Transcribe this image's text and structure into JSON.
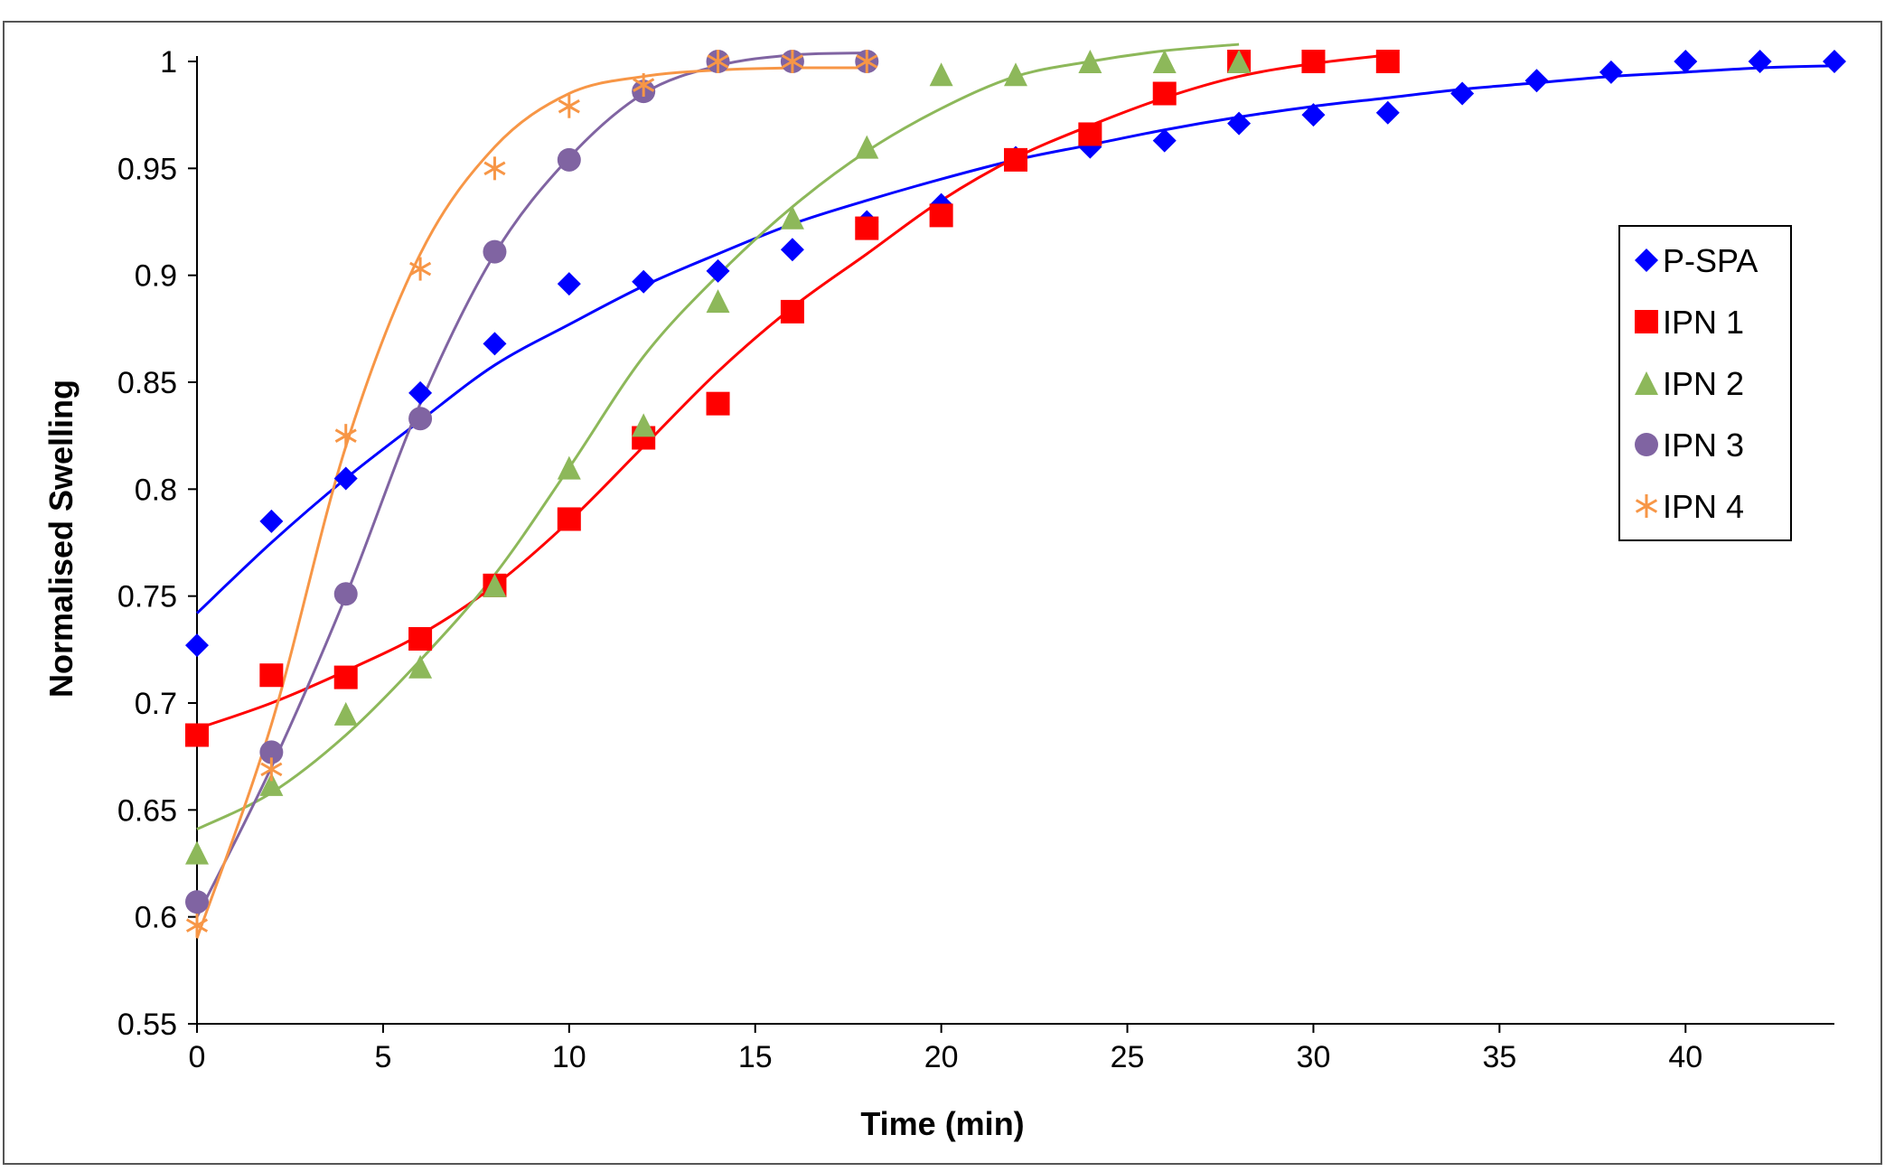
{
  "chart_data": {
    "type": "scatter",
    "title": "",
    "xlabel": "Time (min)",
    "ylabel": "Normalised Swelling",
    "xlim": [
      0,
      44
    ],
    "ylim": [
      0.55,
      1.0
    ],
    "x_ticks": [
      "0",
      "5",
      "10",
      "15",
      "20",
      "25",
      "30",
      "35",
      "40"
    ],
    "y_ticks": [
      "0.55",
      "0.6",
      "0.65",
      "0.7",
      "0.75",
      "0.8",
      "0.85",
      "0.9",
      "0.95",
      "1"
    ],
    "grid": false,
    "legend_position": "right",
    "trendlines": "smooth fitted curve per series",
    "series": [
      {
        "name": "P-SPA",
        "marker": "diamond",
        "color": "#0000ff",
        "x": [
          0,
          2,
          4,
          6,
          8,
          10,
          12,
          14,
          16,
          18,
          20,
          22,
          24,
          26,
          28,
          30,
          32,
          34,
          36,
          38,
          40,
          42,
          44
        ],
        "y": [
          0.727,
          0.785,
          0.805,
          0.845,
          0.868,
          0.896,
          0.897,
          0.902,
          0.912,
          0.925,
          0.933,
          0.955,
          0.96,
          0.963,
          0.971,
          0.975,
          0.976,
          0.985,
          0.991,
          0.995,
          1.0,
          1.0,
          1.0
        ],
        "fit_x": [
          0,
          2,
          4,
          6,
          8,
          10,
          12,
          14,
          16,
          18,
          20,
          22,
          24,
          26,
          28,
          30,
          32,
          34,
          36,
          38,
          40,
          42,
          44
        ],
        "fit_y": [
          0.742,
          0.775,
          0.805,
          0.832,
          0.858,
          0.877,
          0.895,
          0.91,
          0.924,
          0.935,
          0.945,
          0.954,
          0.961,
          0.968,
          0.974,
          0.979,
          0.983,
          0.987,
          0.99,
          0.993,
          0.995,
          0.997,
          0.998
        ]
      },
      {
        "name": "IPN 1",
        "marker": "square",
        "color": "#ff0000",
        "x": [
          0,
          2,
          4,
          6,
          8,
          10,
          12,
          14,
          16,
          18,
          20,
          22,
          24,
          26,
          28,
          30,
          32
        ],
        "y": [
          0.685,
          0.713,
          0.712,
          0.73,
          0.755,
          0.786,
          0.824,
          0.84,
          0.883,
          0.922,
          0.928,
          0.954,
          0.966,
          0.985,
          1.0,
          1.0,
          1.0
        ],
        "fit_x": [
          0,
          2,
          4,
          6,
          8,
          10,
          12,
          14,
          16,
          18,
          20,
          22,
          24,
          26,
          28,
          30,
          32
        ],
        "fit_y": [
          0.688,
          0.7,
          0.715,
          0.732,
          0.755,
          0.785,
          0.82,
          0.855,
          0.885,
          0.91,
          0.935,
          0.955,
          0.97,
          0.983,
          0.993,
          0.999,
          1.003
        ]
      },
      {
        "name": "IPN 2",
        "marker": "triangle",
        "color": "#8db85a",
        "x": [
          0,
          2,
          4,
          6,
          8,
          10,
          12,
          14,
          16,
          18,
          20,
          22,
          24,
          26,
          28
        ],
        "y": [
          0.63,
          0.662,
          0.695,
          0.717,
          0.755,
          0.81,
          0.83,
          0.888,
          0.927,
          0.96,
          0.994,
          0.994,
          1.0,
          1.0,
          1.0
        ],
        "fit_x": [
          0,
          2,
          4,
          6,
          8,
          10,
          12,
          14,
          16,
          18,
          20,
          22,
          24,
          26,
          28
        ],
        "fit_y": [
          0.641,
          0.658,
          0.685,
          0.72,
          0.76,
          0.81,
          0.862,
          0.9,
          0.932,
          0.958,
          0.978,
          0.993,
          1.0,
          1.005,
          1.008
        ]
      },
      {
        "name": "IPN 3",
        "marker": "circle",
        "color": "#8064a2",
        "x": [
          0,
          2,
          4,
          6,
          8,
          10,
          12,
          14,
          16,
          18
        ],
        "y": [
          0.607,
          0.677,
          0.751,
          0.833,
          0.911,
          0.954,
          0.986,
          1.0,
          1.0,
          1.0
        ],
        "fit_x": [
          0,
          2,
          4,
          6,
          8,
          10,
          12,
          14,
          16,
          18
        ],
        "fit_y": [
          0.6,
          0.67,
          0.75,
          0.84,
          0.91,
          0.955,
          0.985,
          0.998,
          1.003,
          1.004
        ]
      },
      {
        "name": "IPN 4",
        "marker": "asterisk",
        "color": "#f79646",
        "x": [
          0,
          2,
          4,
          6,
          8,
          10,
          12,
          14,
          16,
          18
        ],
        "y": [
          0.596,
          0.669,
          0.825,
          0.903,
          0.95,
          0.979,
          0.989,
          1.0,
          1.0,
          1.0
        ],
        "fit_x": [
          0,
          2,
          4,
          6,
          8,
          10,
          12,
          14,
          16,
          18
        ],
        "fit_y": [
          0.59,
          0.69,
          0.82,
          0.91,
          0.96,
          0.985,
          0.993,
          0.996,
          0.997,
          0.997
        ]
      }
    ]
  }
}
